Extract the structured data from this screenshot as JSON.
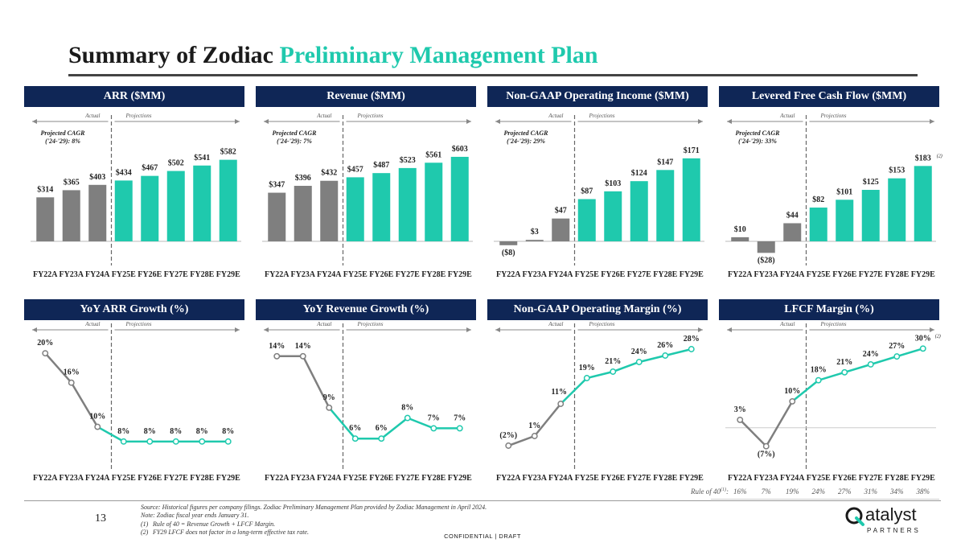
{
  "title": {
    "part1": "Summary of Zodiac",
    "part2": "Preliminary Management Plan"
  },
  "labels": {
    "actual": "Actual",
    "projections": "Projections"
  },
  "colors": {
    "actual": "#7f7f7f",
    "projection": "#1fc9ad",
    "header": "#0f2656"
  },
  "chart_data": [
    {
      "id": "arr",
      "type": "bar",
      "title": "ARR ($MM)",
      "categories": [
        "FY22A",
        "FY23A",
        "FY24A",
        "FY25E",
        "FY26E",
        "FY27E",
        "FY28E",
        "FY29E"
      ],
      "values": [
        314,
        365,
        403,
        434,
        467,
        502,
        541,
        582
      ],
      "labels": [
        "$314",
        "$365",
        "$403",
        "$434",
        "$467",
        "$502",
        "$541",
        "$582"
      ],
      "cagr": [
        "Projected CAGR",
        "('24-'29): 8%"
      ],
      "actual_count": 3
    },
    {
      "id": "revenue",
      "type": "bar",
      "title": "Revenue ($MM)",
      "categories": [
        "FY22A",
        "FY23A",
        "FY24A",
        "FY25E",
        "FY26E",
        "FY27E",
        "FY28E",
        "FY29E"
      ],
      "values": [
        347,
        396,
        432,
        457,
        487,
        523,
        561,
        603
      ],
      "labels": [
        "$347",
        "$396",
        "$432",
        "$457",
        "$487",
        "$523",
        "$561",
        "$603"
      ],
      "cagr": [
        "Projected CAGR",
        "('24-'29): 7%"
      ],
      "actual_count": 3
    },
    {
      "id": "opinc",
      "type": "bar",
      "title": "Non-GAAP Operating Income ($MM)",
      "categories": [
        "FY22A",
        "FY23A",
        "FY24A",
        "FY25E",
        "FY26E",
        "FY27E",
        "FY28E",
        "FY29E"
      ],
      "values": [
        -8,
        3,
        47,
        87,
        103,
        124,
        147,
        171
      ],
      "labels": [
        "($8)",
        "$3",
        "$47",
        "$87",
        "$103",
        "$124",
        "$147",
        "$171"
      ],
      "cagr": [
        "Projected CAGR",
        "('24-'29): 29%"
      ],
      "actual_count": 3
    },
    {
      "id": "lfcf",
      "type": "bar",
      "title": "Levered Free Cash Flow ($MM)",
      "categories": [
        "FY22A",
        "FY23A",
        "FY24A",
        "FY25E",
        "FY26E",
        "FY27E",
        "FY28E",
        "FY29E"
      ],
      "values": [
        10,
        -28,
        44,
        82,
        101,
        125,
        153,
        183
      ],
      "labels": [
        "$10",
        "($28)",
        "$44",
        "$82",
        "$101",
        "$125",
        "$153",
        "$183"
      ],
      "last_sup": "(2)",
      "cagr": [
        "Projected CAGR",
        "('24-'29): 33%"
      ],
      "actual_count": 3
    },
    {
      "id": "arr_growth",
      "type": "line",
      "title": "YoY ARR Growth (%)",
      "categories": [
        "FY22A",
        "FY23A",
        "FY24A",
        "FY25E",
        "FY26E",
        "FY27E",
        "FY28E",
        "FY29E"
      ],
      "values": [
        20,
        16,
        10,
        8,
        8,
        8,
        8,
        8
      ],
      "labels": [
        "20%",
        "16%",
        "10%",
        "8%",
        "8%",
        "8%",
        "8%",
        "8%"
      ],
      "actual_count": 3
    },
    {
      "id": "rev_growth",
      "type": "line",
      "title": "YoY Revenue Growth (%)",
      "categories": [
        "FY22A",
        "FY23A",
        "FY24A",
        "FY25E",
        "FY26E",
        "FY27E",
        "FY28E",
        "FY29E"
      ],
      "values": [
        14,
        14,
        9,
        6,
        6,
        8,
        7,
        7
      ],
      "labels": [
        "14%",
        "14%",
        "9%",
        "6%",
        "6%",
        "8%",
        "7%",
        "7%"
      ],
      "actual_count": 3
    },
    {
      "id": "op_margin",
      "type": "line",
      "title": "Non-GAAP Operating Margin (%)",
      "categories": [
        "FY22A",
        "FY23A",
        "FY24A",
        "FY25E",
        "FY26E",
        "FY27E",
        "FY28E",
        "FY29E"
      ],
      "values": [
        -2,
        1,
        11,
        19,
        21,
        24,
        26,
        28
      ],
      "labels": [
        "(2%)",
        "1%",
        "11%",
        "19%",
        "21%",
        "24%",
        "26%",
        "28%"
      ],
      "actual_count": 3
    },
    {
      "id": "lfcf_margin",
      "type": "line",
      "title": "LFCF Margin (%)",
      "categories": [
        "FY22A",
        "FY23A",
        "FY24A",
        "FY25E",
        "FY26E",
        "FY27E",
        "FY28E",
        "FY29E"
      ],
      "values": [
        3,
        -7,
        10,
        18,
        21,
        24,
        27,
        30
      ],
      "labels": [
        "3%",
        "(7%)",
        "10%",
        "18%",
        "21%",
        "24%",
        "27%",
        "30%"
      ],
      "last_sup": "(2)",
      "actual_count": 3
    }
  ],
  "rule_of_40": {
    "label": "Rule of 40",
    "sup": "(1)",
    "colon": ":",
    "values": [
      "16%",
      "7%",
      "19%",
      "24%",
      "27%",
      "31%",
      "34%",
      "38%"
    ]
  },
  "page_number": "13",
  "notes": {
    "source": "Source: Historical figures per company filings. Zodiac Preliminary Management Plan provided by Zodiac Management in April 2024.",
    "note": "Note: Zodiac fiscal year ends January 31.",
    "fn1_key": "(1)",
    "fn1": "Rule of 40 = Revenue Growth + LFCF Margin.",
    "fn2_key": "(2)",
    "fn2": "FY29 LFCF does not factor in a long-term effective tax rate."
  },
  "confidential": "CONFIDENTIAL  |  DRAFT",
  "logo": {
    "name": "atalyst",
    "sub": "PARTNERS"
  }
}
